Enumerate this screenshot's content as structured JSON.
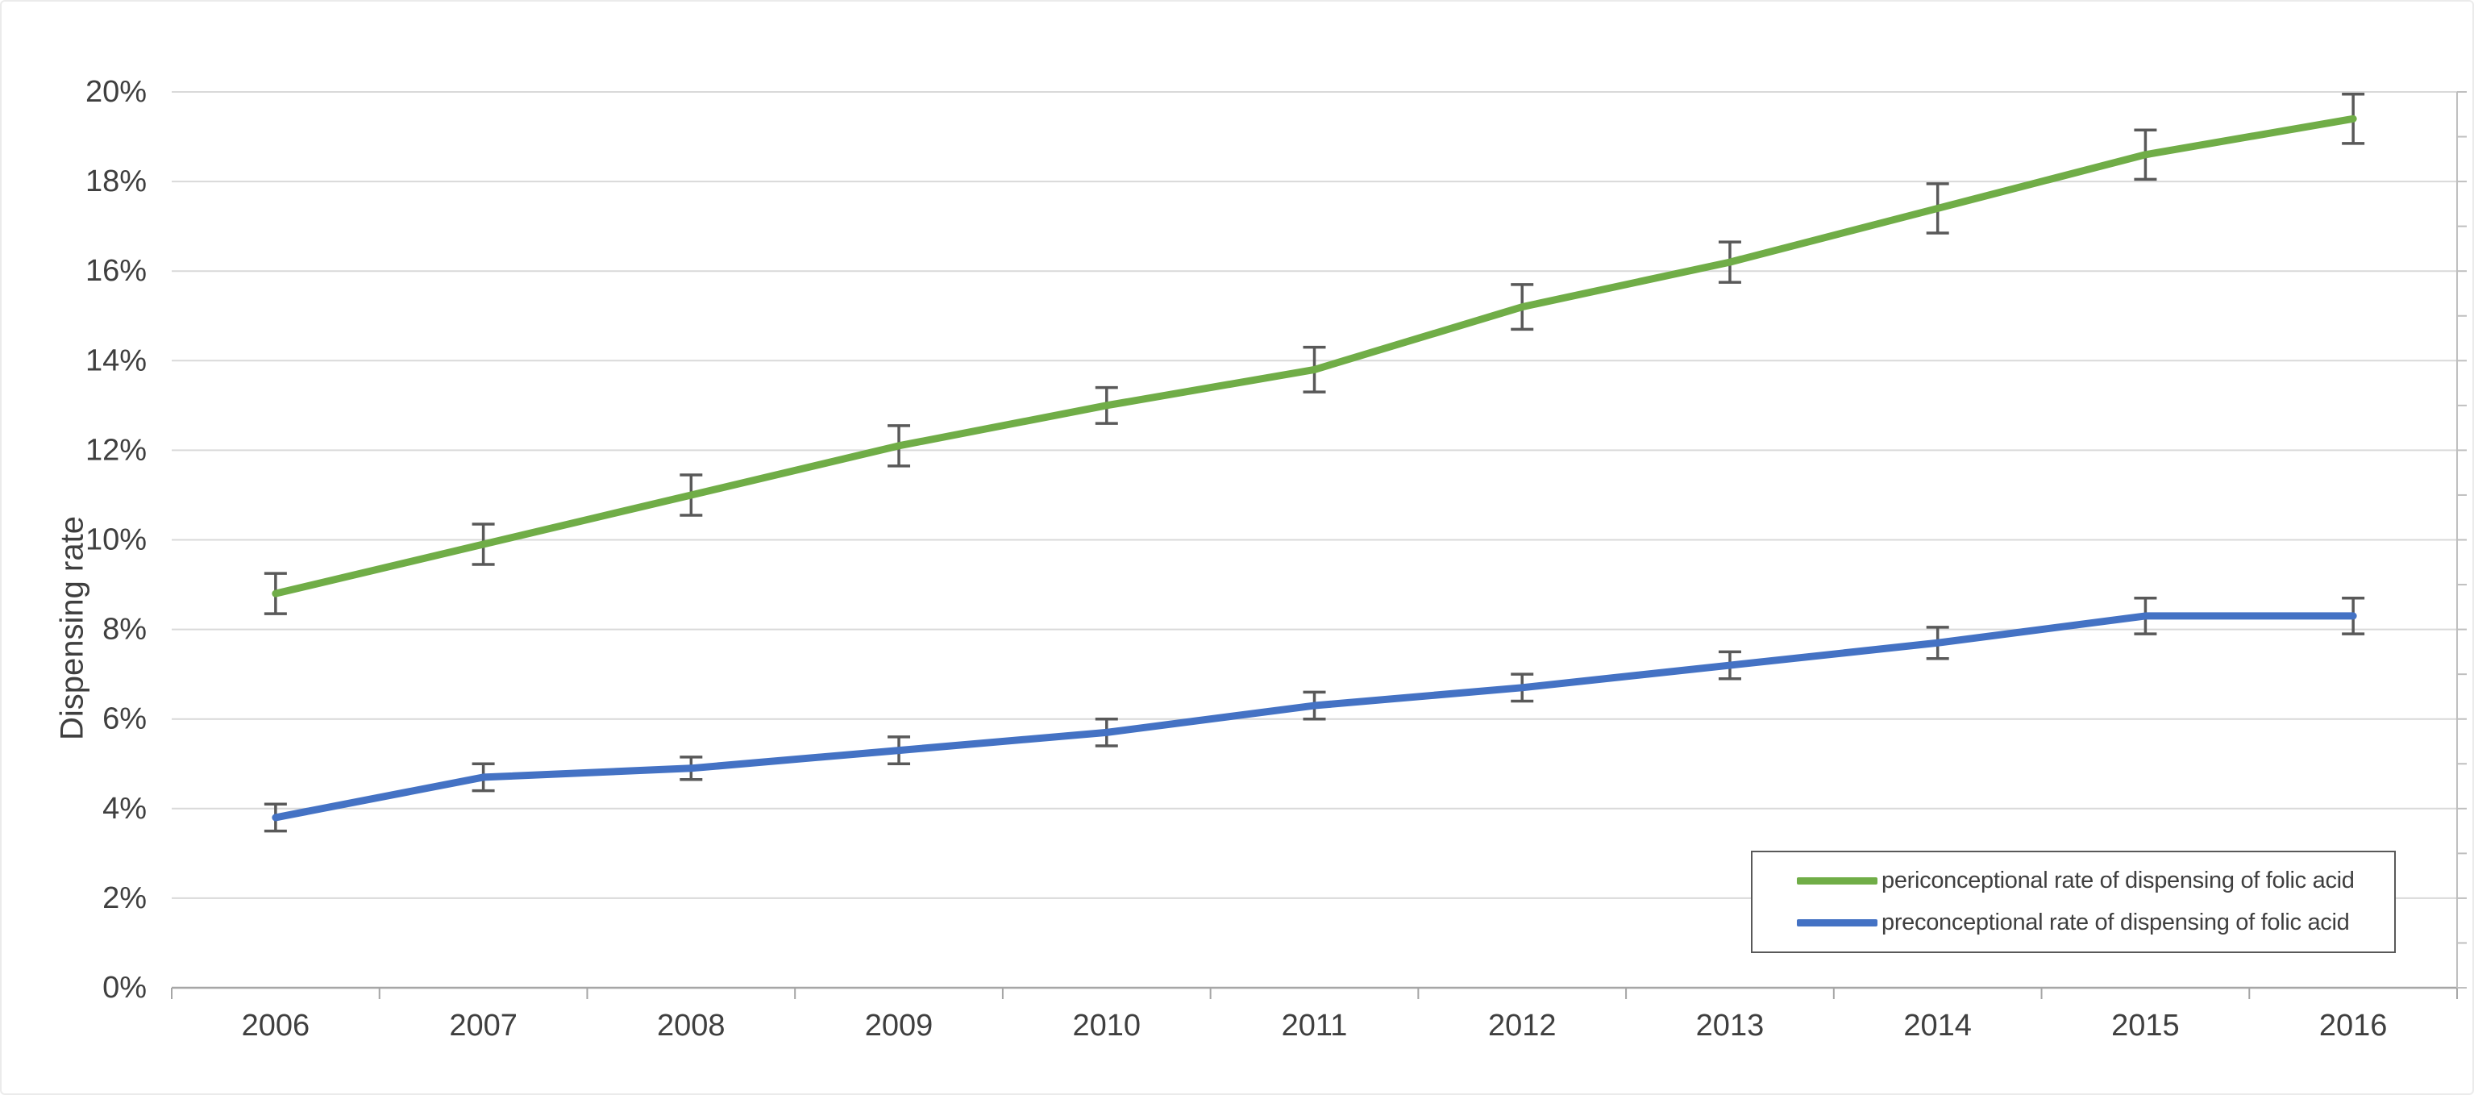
{
  "chart_data": {
    "type": "line",
    "title": "",
    "x": [
      "2006",
      "2007",
      "2008",
      "2009",
      "2010",
      "2011",
      "2012",
      "2013",
      "2014",
      "2015",
      "2016"
    ],
    "xlabel": "",
    "ylabel": "Dispensing rate",
    "ylim": [
      0,
      20
    ],
    "ytick_step": 2,
    "ytick_labels": [
      "0%",
      "2%",
      "4%",
      "6%",
      "8%",
      "10%",
      "12%",
      "14%",
      "16%",
      "18%",
      "20%"
    ],
    "grid": true,
    "error_bars": true,
    "legend": {
      "position": "inside-bottom-right",
      "border": true
    },
    "series": [
      {
        "name": "periconceptional rate of dispensing of folic acid",
        "color": "#70AD47",
        "values": [
          8.8,
          9.9,
          11.0,
          12.1,
          13.0,
          13.8,
          15.2,
          16.2,
          17.4,
          18.6,
          19.4
        ],
        "errors": [
          0.45,
          0.45,
          0.45,
          0.45,
          0.4,
          0.5,
          0.5,
          0.45,
          0.55,
          0.55,
          0.55
        ]
      },
      {
        "name": "preconceptional rate of dispensing of folic acid",
        "color": "#4472C4",
        "values": [
          3.8,
          4.7,
          4.9,
          5.3,
          5.7,
          6.3,
          6.7,
          7.2,
          7.7,
          8.3,
          8.3
        ],
        "errors": [
          0.3,
          0.3,
          0.25,
          0.3,
          0.3,
          0.3,
          0.3,
          0.3,
          0.35,
          0.4,
          0.4
        ]
      }
    ],
    "colors": {
      "gridline": "#D9D9D9",
      "bottom_axis": "#A6A6A6",
      "right_axis": "#BFBFBF",
      "error_bar": "#595959",
      "text": "#3F3F3F",
      "legend_border": "#595959",
      "background": "#FFFFFF"
    }
  }
}
